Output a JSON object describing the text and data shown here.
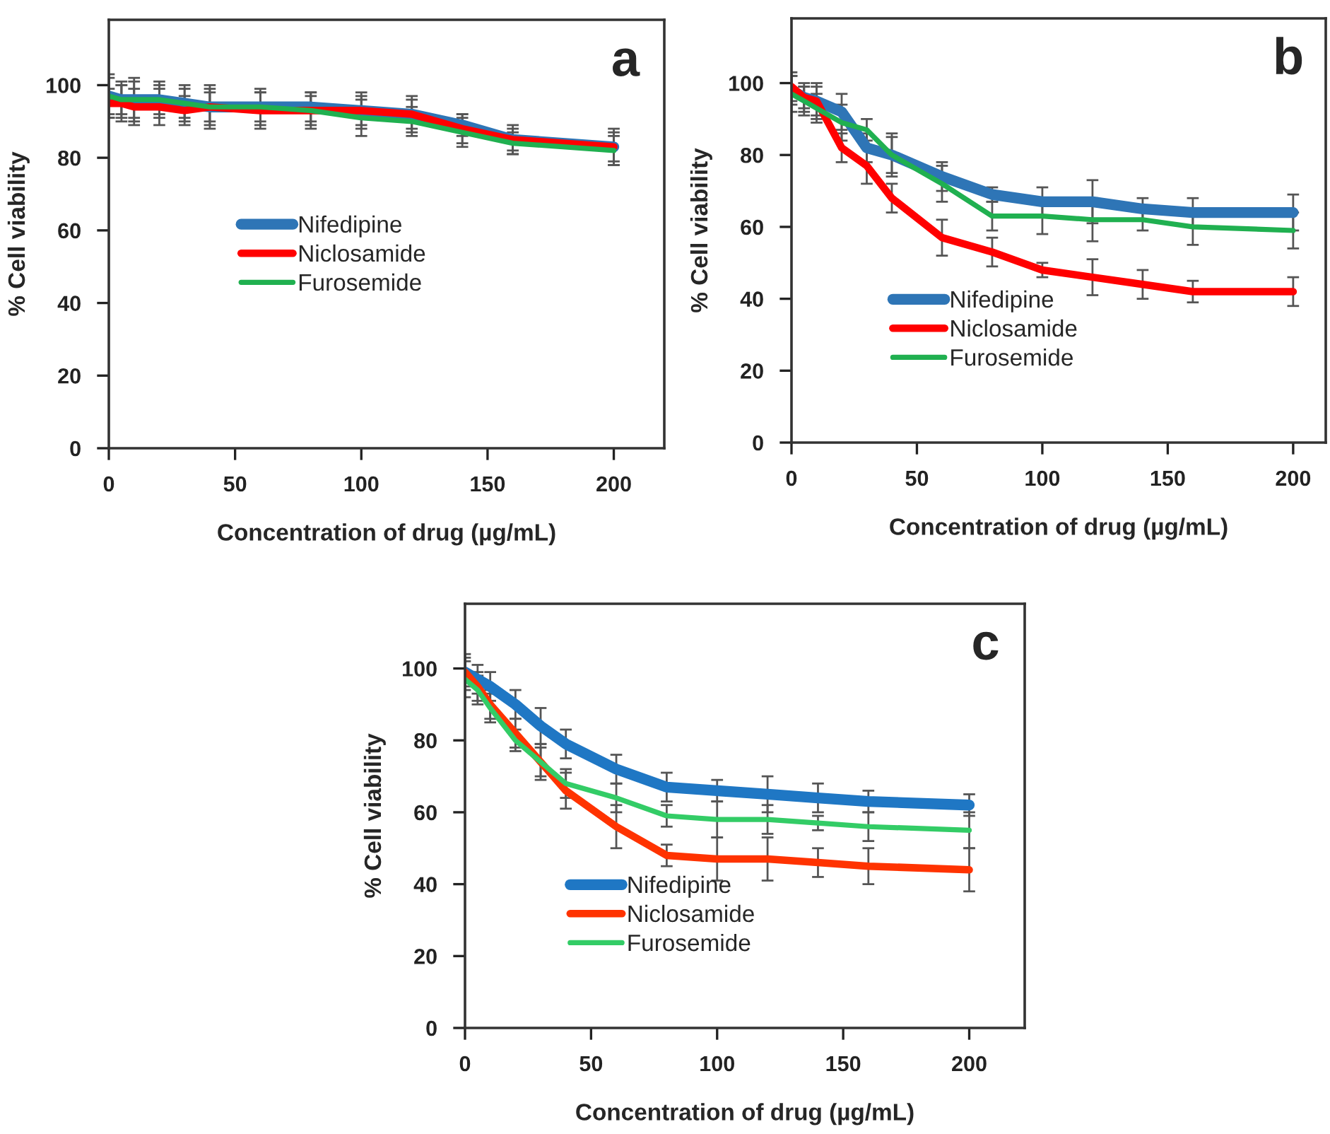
{
  "chart_data": [
    {
      "type": "line",
      "xlabel": "Concentration of drug (µg/mL)",
      "ylabel": "% Cell viability",
      "annotations": [
        "a"
      ],
      "x": [
        0,
        5,
        10,
        20,
        30,
        40,
        60,
        80,
        100,
        120,
        140,
        160,
        200
      ],
      "xlim": [
        0,
        220
      ],
      "xticks": [
        0,
        50,
        100,
        150,
        200
      ],
      "ylim": [
        0,
        118
      ],
      "yticks": [
        0,
        20,
        40,
        60,
        80,
        100
      ],
      "grid": false,
      "legend": "center left",
      "marker": "none",
      "line_style": "solid",
      "series": [
        {
          "name": "Nifedipine",
          "color": "#2e75b6",
          "values": [
            97,
            96,
            96,
            96,
            95,
            94,
            94,
            94,
            93,
            92,
            89,
            85,
            83
          ],
          "errors": [
            5,
            5,
            5,
            4,
            4,
            5,
            4,
            4,
            5,
            4,
            3,
            4,
            4
          ]
        },
        {
          "name": "Niclosamide",
          "color": "#ff0000",
          "values": [
            95,
            95,
            94,
            94,
            93,
            94,
            93,
            93,
            93,
            92,
            88,
            85,
            83
          ],
          "errors": [
            4,
            5,
            5,
            5,
            4,
            6,
            5,
            4,
            4,
            5,
            4,
            3,
            5
          ]
        },
        {
          "name": "Furosemide",
          "color": "#20b050",
          "values": [
            97,
            96,
            96,
            96,
            95,
            94,
            94,
            93,
            91,
            90,
            87,
            84,
            82
          ],
          "errors": [
            6,
            4,
            6,
            5,
            5,
            4,
            5,
            5,
            5,
            4,
            4,
            3,
            4
          ]
        }
      ]
    },
    {
      "type": "line",
      "xlabel": "Concentration of drug (µg/mL)",
      "ylabel": "% Cell viability",
      "annotations": [
        "b"
      ],
      "x": [
        0,
        5,
        10,
        20,
        30,
        40,
        60,
        80,
        100,
        120,
        140,
        160,
        200
      ],
      "xlim": [
        0,
        213
      ],
      "xticks": [
        0,
        50,
        100,
        150,
        200
      ],
      "ylim": [
        0,
        118
      ],
      "yticks": [
        0,
        20,
        40,
        60,
        80,
        100
      ],
      "grid": false,
      "legend": "lower left",
      "marker": "none",
      "line_style": "solid",
      "series": [
        {
          "name": "Nifedipine",
          "color": "#2e75b6",
          "values": [
            98,
            96,
            95,
            92,
            82,
            80,
            74,
            69,
            67,
            67,
            65,
            64,
            64
          ],
          "errors": [
            4,
            4,
            4,
            5,
            4,
            6,
            4,
            2,
            4,
            6,
            3,
            4,
            5
          ]
        },
        {
          "name": "Niclosamide",
          "color": "#ff0000",
          "values": [
            99,
            96,
            95,
            82,
            77,
            68,
            57,
            53,
            48,
            46,
            44,
            42,
            42
          ],
          "errors": [
            4,
            3,
            5,
            4,
            5,
            4,
            5,
            4,
            2,
            5,
            4,
            3,
            4
          ]
        },
        {
          "name": "Furosemide",
          "color": "#20b050",
          "values": [
            97,
            95,
            93,
            89,
            87,
            80,
            72,
            63,
            63,
            62,
            62,
            60,
            59
          ],
          "errors": [
            5,
            4,
            4,
            5,
            3,
            5,
            5,
            4,
            5,
            6,
            3,
            5,
            5
          ]
        }
      ]
    },
    {
      "type": "line",
      "xlabel": "Concentration of drug (µg/mL)",
      "ylabel": "% Cell viability",
      "annotations": [
        "c"
      ],
      "x": [
        0,
        5,
        10,
        20,
        30,
        40,
        60,
        80,
        100,
        120,
        140,
        160,
        200
      ],
      "xlim": [
        0,
        222
      ],
      "xticks": [
        0,
        50,
        100,
        150,
        200
      ],
      "ylim": [
        0,
        118
      ],
      "yticks": [
        0,
        20,
        40,
        60,
        80,
        100
      ],
      "grid": false,
      "legend": "lower left",
      "marker": "none",
      "line_style": "solid",
      "series": [
        {
          "name": "Nifedipine",
          "color": "#1f77c4",
          "values": [
            99,
            97,
            95,
            90,
            84,
            79,
            72,
            67,
            66,
            65,
            64,
            63,
            62
          ],
          "errors": [
            5,
            4,
            4,
            4,
            5,
            4,
            4,
            4,
            3,
            5,
            4,
            3,
            3
          ]
        },
        {
          "name": "Niclosamide",
          "color": "#ff3300",
          "values": [
            99,
            95,
            90,
            82,
            74,
            66,
            56,
            48,
            47,
            47,
            46,
            45,
            44
          ],
          "errors": [
            4,
            4,
            4,
            4,
            4,
            5,
            6,
            3,
            6,
            6,
            4,
            5,
            6
          ]
        },
        {
          "name": "Furosemide",
          "color": "#33cc66",
          "values": [
            97,
            94,
            89,
            80,
            74,
            68,
            64,
            59,
            58,
            58,
            57,
            56,
            55
          ],
          "errors": [
            5,
            4,
            4,
            3,
            5,
            4,
            4,
            3,
            5,
            4,
            2,
            4,
            5
          ]
        }
      ]
    }
  ]
}
